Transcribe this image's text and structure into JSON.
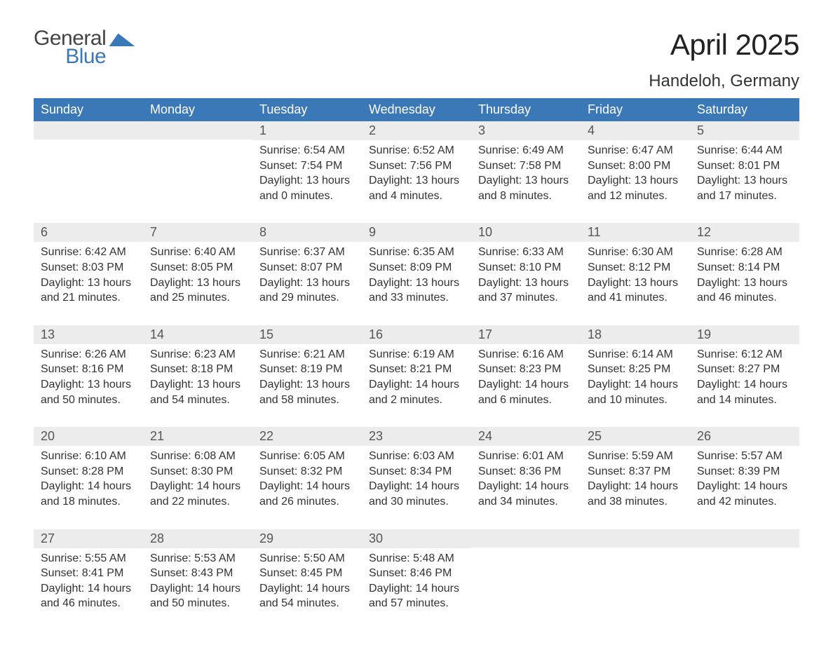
{
  "brand": {
    "word1": "General",
    "word2": "Blue",
    "word1_color": "#444444",
    "word2_color": "#3b78b8",
    "flag_color": "#3b78b8"
  },
  "header": {
    "month_title": "April 2025",
    "location": "Handeloh, Germany"
  },
  "style": {
    "header_bg": "#3b78b8",
    "header_fg": "#ffffff",
    "date_bar_bg": "#ececec",
    "date_bar_fg": "#555555",
    "week_sep_color": "#3b78b8",
    "body_fg": "#333333",
    "background": "#ffffff",
    "font_family": "Helvetica Neue, Helvetica, Arial, sans-serif"
  },
  "day_labels": [
    "Sunday",
    "Monday",
    "Tuesday",
    "Wednesday",
    "Thursday",
    "Friday",
    "Saturday"
  ],
  "weeks": [
    [
      {
        "blank": true
      },
      {
        "blank": true
      },
      {
        "date": "1",
        "sunrise": "Sunrise: 6:54 AM",
        "sunset": "Sunset: 7:54 PM",
        "day1": "Daylight: 13 hours",
        "day2": "and 0 minutes."
      },
      {
        "date": "2",
        "sunrise": "Sunrise: 6:52 AM",
        "sunset": "Sunset: 7:56 PM",
        "day1": "Daylight: 13 hours",
        "day2": "and 4 minutes."
      },
      {
        "date": "3",
        "sunrise": "Sunrise: 6:49 AM",
        "sunset": "Sunset: 7:58 PM",
        "day1": "Daylight: 13 hours",
        "day2": "and 8 minutes."
      },
      {
        "date": "4",
        "sunrise": "Sunrise: 6:47 AM",
        "sunset": "Sunset: 8:00 PM",
        "day1": "Daylight: 13 hours",
        "day2": "and 12 minutes."
      },
      {
        "date": "5",
        "sunrise": "Sunrise: 6:44 AM",
        "sunset": "Sunset: 8:01 PM",
        "day1": "Daylight: 13 hours",
        "day2": "and 17 minutes."
      }
    ],
    [
      {
        "date": "6",
        "sunrise": "Sunrise: 6:42 AM",
        "sunset": "Sunset: 8:03 PM",
        "day1": "Daylight: 13 hours",
        "day2": "and 21 minutes."
      },
      {
        "date": "7",
        "sunrise": "Sunrise: 6:40 AM",
        "sunset": "Sunset: 8:05 PM",
        "day1": "Daylight: 13 hours",
        "day2": "and 25 minutes."
      },
      {
        "date": "8",
        "sunrise": "Sunrise: 6:37 AM",
        "sunset": "Sunset: 8:07 PM",
        "day1": "Daylight: 13 hours",
        "day2": "and 29 minutes."
      },
      {
        "date": "9",
        "sunrise": "Sunrise: 6:35 AM",
        "sunset": "Sunset: 8:09 PM",
        "day1": "Daylight: 13 hours",
        "day2": "and 33 minutes."
      },
      {
        "date": "10",
        "sunrise": "Sunrise: 6:33 AM",
        "sunset": "Sunset: 8:10 PM",
        "day1": "Daylight: 13 hours",
        "day2": "and 37 minutes."
      },
      {
        "date": "11",
        "sunrise": "Sunrise: 6:30 AM",
        "sunset": "Sunset: 8:12 PM",
        "day1": "Daylight: 13 hours",
        "day2": "and 41 minutes."
      },
      {
        "date": "12",
        "sunrise": "Sunrise: 6:28 AM",
        "sunset": "Sunset: 8:14 PM",
        "day1": "Daylight: 13 hours",
        "day2": "and 46 minutes."
      }
    ],
    [
      {
        "date": "13",
        "sunrise": "Sunrise: 6:26 AM",
        "sunset": "Sunset: 8:16 PM",
        "day1": "Daylight: 13 hours",
        "day2": "and 50 minutes."
      },
      {
        "date": "14",
        "sunrise": "Sunrise: 6:23 AM",
        "sunset": "Sunset: 8:18 PM",
        "day1": "Daylight: 13 hours",
        "day2": "and 54 minutes."
      },
      {
        "date": "15",
        "sunrise": "Sunrise: 6:21 AM",
        "sunset": "Sunset: 8:19 PM",
        "day1": "Daylight: 13 hours",
        "day2": "and 58 minutes."
      },
      {
        "date": "16",
        "sunrise": "Sunrise: 6:19 AM",
        "sunset": "Sunset: 8:21 PM",
        "day1": "Daylight: 14 hours",
        "day2": "and 2 minutes."
      },
      {
        "date": "17",
        "sunrise": "Sunrise: 6:16 AM",
        "sunset": "Sunset: 8:23 PM",
        "day1": "Daylight: 14 hours",
        "day2": "and 6 minutes."
      },
      {
        "date": "18",
        "sunrise": "Sunrise: 6:14 AM",
        "sunset": "Sunset: 8:25 PM",
        "day1": "Daylight: 14 hours",
        "day2": "and 10 minutes."
      },
      {
        "date": "19",
        "sunrise": "Sunrise: 6:12 AM",
        "sunset": "Sunset: 8:27 PM",
        "day1": "Daylight: 14 hours",
        "day2": "and 14 minutes."
      }
    ],
    [
      {
        "date": "20",
        "sunrise": "Sunrise: 6:10 AM",
        "sunset": "Sunset: 8:28 PM",
        "day1": "Daylight: 14 hours",
        "day2": "and 18 minutes."
      },
      {
        "date": "21",
        "sunrise": "Sunrise: 6:08 AM",
        "sunset": "Sunset: 8:30 PM",
        "day1": "Daylight: 14 hours",
        "day2": "and 22 minutes."
      },
      {
        "date": "22",
        "sunrise": "Sunrise: 6:05 AM",
        "sunset": "Sunset: 8:32 PM",
        "day1": "Daylight: 14 hours",
        "day2": "and 26 minutes."
      },
      {
        "date": "23",
        "sunrise": "Sunrise: 6:03 AM",
        "sunset": "Sunset: 8:34 PM",
        "day1": "Daylight: 14 hours",
        "day2": "and 30 minutes."
      },
      {
        "date": "24",
        "sunrise": "Sunrise: 6:01 AM",
        "sunset": "Sunset: 8:36 PM",
        "day1": "Daylight: 14 hours",
        "day2": "and 34 minutes."
      },
      {
        "date": "25",
        "sunrise": "Sunrise: 5:59 AM",
        "sunset": "Sunset: 8:37 PM",
        "day1": "Daylight: 14 hours",
        "day2": "and 38 minutes."
      },
      {
        "date": "26",
        "sunrise": "Sunrise: 5:57 AM",
        "sunset": "Sunset: 8:39 PM",
        "day1": "Daylight: 14 hours",
        "day2": "and 42 minutes."
      }
    ],
    [
      {
        "date": "27",
        "sunrise": "Sunrise: 5:55 AM",
        "sunset": "Sunset: 8:41 PM",
        "day1": "Daylight: 14 hours",
        "day2": "and 46 minutes."
      },
      {
        "date": "28",
        "sunrise": "Sunrise: 5:53 AM",
        "sunset": "Sunset: 8:43 PM",
        "day1": "Daylight: 14 hours",
        "day2": "and 50 minutes."
      },
      {
        "date": "29",
        "sunrise": "Sunrise: 5:50 AM",
        "sunset": "Sunset: 8:45 PM",
        "day1": "Daylight: 14 hours",
        "day2": "and 54 minutes."
      },
      {
        "date": "30",
        "sunrise": "Sunrise: 5:48 AM",
        "sunset": "Sunset: 8:46 PM",
        "day1": "Daylight: 14 hours",
        "day2": "and 57 minutes."
      },
      {
        "blank": true
      },
      {
        "blank": true
      },
      {
        "blank": true
      }
    ]
  ]
}
